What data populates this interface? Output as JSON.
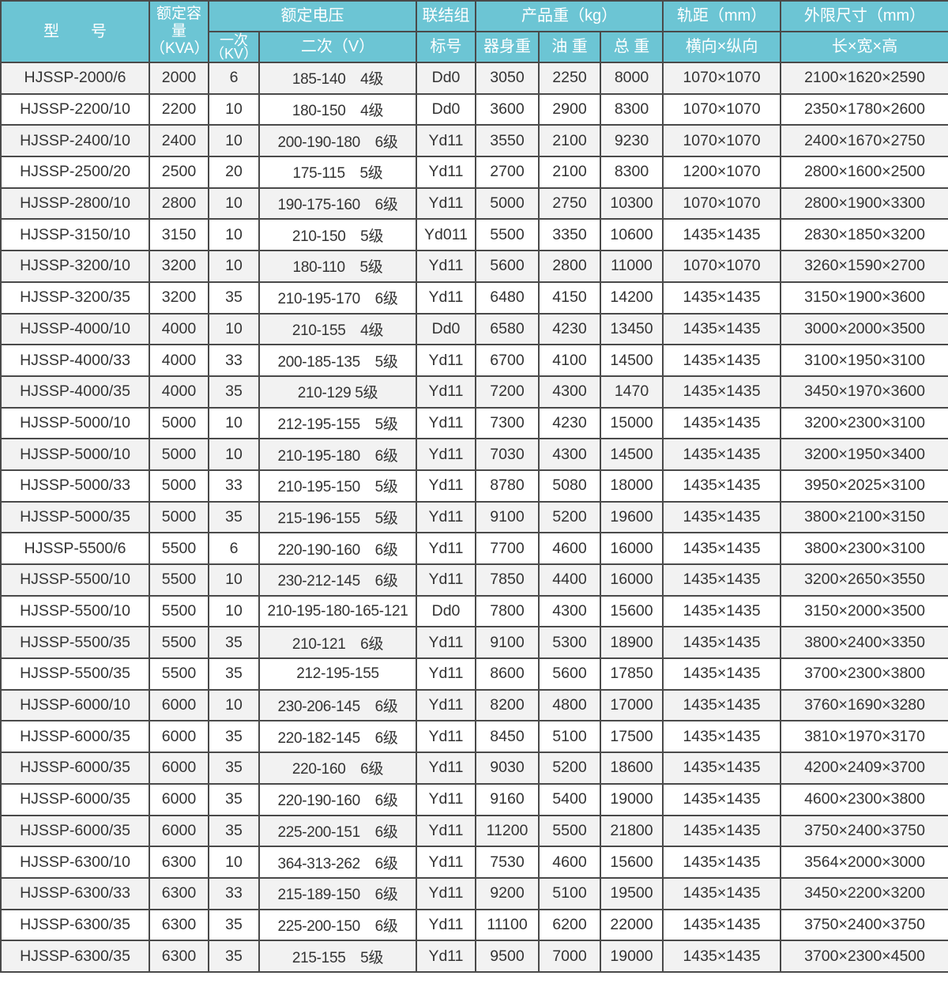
{
  "colors": {
    "header_bg": "#6cc5d4",
    "header_text": "#ffffff",
    "row_alt_bg": "#f2f2f2",
    "row_bg": "#ffffff",
    "border": "#4a4a4a"
  },
  "header": {
    "model": "型　　号",
    "capacity": "额定容量（KVA）",
    "rated_voltage": "额定电压",
    "primary": "一次（KV）",
    "secondary": "二次（V）",
    "connection_top": "联结组",
    "connection_bottom": "标号",
    "weight": "产品重（kg）",
    "body_weight": "器身重",
    "oil_weight": "油 重",
    "total_weight": "总 重",
    "gauge": "轨距（mm）",
    "gauge_sub": "横向×纵向",
    "dimensions": "外限尺寸（mm）",
    "dimensions_sub": "长×宽×高"
  },
  "rows": [
    [
      "HJSSP-2000/6",
      "2000",
      "6",
      "185-140　4级",
      "Dd0",
      "3050",
      "2250",
      "8000",
      "1070×1070",
      "2100×1620×2590"
    ],
    [
      "HJSSP-2200/10",
      "2200",
      "10",
      "180-150　4级",
      "Dd0",
      "3600",
      "2900",
      "8300",
      "1070×1070",
      "2350×1780×2600"
    ],
    [
      "HJSSP-2400/10",
      "2400",
      "10",
      "200-190-180　6级",
      "Yd11",
      "3550",
      "2100",
      "9230",
      "1070×1070",
      "2400×1670×2750"
    ],
    [
      "HJSSP-2500/20",
      "2500",
      "20",
      "175-115　5级",
      "Yd11",
      "2700",
      "2100",
      "8300",
      "1200×1070",
      "2800×1600×2500"
    ],
    [
      "HJSSP-2800/10",
      "2800",
      "10",
      "190-175-160　6级",
      "Yd11",
      "5000",
      "2750",
      "10300",
      "1070×1070",
      "2800×1900×3300"
    ],
    [
      "HJSSP-3150/10",
      "3150",
      "10",
      "210-150　5级",
      "Yd011",
      "5500",
      "3350",
      "10600",
      "1435×1435",
      "2830×1850×3200"
    ],
    [
      "HJSSP-3200/10",
      "3200",
      "10",
      "180-110　5级",
      "Yd11",
      "5600",
      "2800",
      "11000",
      "1070×1070",
      "3260×1590×2700"
    ],
    [
      "HJSSP-3200/35",
      "3200",
      "35",
      "210-195-170　6级",
      "Yd11",
      "6480",
      "4150",
      "14200",
      "1435×1435",
      "3150×1900×3600"
    ],
    [
      "HJSSP-4000/10",
      "4000",
      "10",
      "210-155　4级",
      "Dd0",
      "6580",
      "4230",
      "13450",
      "1435×1435",
      "3000×2000×3500"
    ],
    [
      "HJSSP-4000/33",
      "4000",
      "33",
      "200-185-135　5级",
      "Yd11",
      "6700",
      "4100",
      "14500",
      "1435×1435",
      "3100×1950×3100"
    ],
    [
      "HJSSP-4000/35",
      "4000",
      "35",
      "210-129 5级",
      "Yd11",
      "7200",
      "4300",
      "1470",
      "1435×1435",
      "3450×1970×3600"
    ],
    [
      "HJSSP-5000/10",
      "5000",
      "10",
      "212-195-155　5级",
      "Yd11",
      "7300",
      "4230",
      "15000",
      "1435×1435",
      "3200×2300×3100"
    ],
    [
      "HJSSP-5000/10",
      "5000",
      "10",
      "210-195-180　6级",
      "Yd11",
      "7030",
      "4300",
      "14500",
      "1435×1435",
      "3200×1950×3400"
    ],
    [
      "HJSSP-5000/33",
      "5000",
      "33",
      "210-195-150　5级",
      "Yd11",
      "8780",
      "5080",
      "18000",
      "1435×1435",
      "3950×2025×3100"
    ],
    [
      "HJSSP-5000/35",
      "5000",
      "35",
      "215-196-155　5级",
      "Yd11",
      "9100",
      "5200",
      "19600",
      "1435×1435",
      "3800×2100×3150"
    ],
    [
      "HJSSP-5500/6",
      "5500",
      "6",
      "220-190-160　6级",
      "Yd11",
      "7700",
      "4600",
      "16000",
      "1435×1435",
      "3800×2300×3100"
    ],
    [
      "HJSSP-5500/10",
      "5500",
      "10",
      "230-212-145　6级",
      "Yd11",
      "7850",
      "4400",
      "16000",
      "1435×1435",
      "3200×2650×3550"
    ],
    [
      "HJSSP-5500/10",
      "5500",
      "10",
      "210-195-180-165-121",
      "Dd0",
      "7800",
      "4300",
      "15600",
      "1435×1435",
      "3150×2000×3500"
    ],
    [
      "HJSSP-5500/35",
      "5500",
      "35",
      "210-121　6级",
      "Yd11",
      "9100",
      "5300",
      "18900",
      "1435×1435",
      "3800×2400×3350"
    ],
    [
      "HJSSP-5500/35",
      "5500",
      "35",
      "212-195-155",
      "Yd11",
      "8600",
      "5600",
      "17850",
      "1435×1435",
      "3700×2300×3800"
    ],
    [
      "HJSSP-6000/10",
      "6000",
      "10",
      "230-206-145　6级",
      "Yd11",
      "8200",
      "4800",
      "17000",
      "1435×1435",
      "3760×1690×3280"
    ],
    [
      "HJSSP-6000/35",
      "6000",
      "35",
      "220-182-145　6级",
      "Yd11",
      "8450",
      "5100",
      "17500",
      "1435×1435",
      "3810×1970×3170"
    ],
    [
      "HJSSP-6000/35",
      "6000",
      "35",
      "220-160　6级",
      "Yd11",
      "9030",
      "5200",
      "18600",
      "1435×1435",
      "4200×2409×3700"
    ],
    [
      "HJSSP-6000/35",
      "6000",
      "35",
      "220-190-160　6级",
      "Yd11",
      "9160",
      "5400",
      "19000",
      "1435×1435",
      "4600×2300×3800"
    ],
    [
      "HJSSP-6000/35",
      "6000",
      "35",
      "225-200-151　6级",
      "Yd11",
      "11200",
      "5500",
      "21800",
      "1435×1435",
      "3750×2400×3750"
    ],
    [
      "HJSSP-6300/10",
      "6300",
      "10",
      "364-313-262　6级",
      "Yd11",
      "7530",
      "4600",
      "15600",
      "1435×1435",
      "3564×2000×3000"
    ],
    [
      "HJSSP-6300/33",
      "6300",
      "33",
      "215-189-150　6级",
      "Yd11",
      "9200",
      "5100",
      "19500",
      "1435×1435",
      "3450×2200×3200"
    ],
    [
      "HJSSP-6300/35",
      "6300",
      "35",
      "225-200-150　6级",
      "Yd11",
      "11100",
      "6200",
      "22000",
      "1435×1435",
      "3750×2400×3750"
    ],
    [
      "HJSSP-6300/35",
      "6300",
      "35",
      "215-155　5级",
      "Yd11",
      "9500",
      "7000",
      "19000",
      "1435×1435",
      "3700×2300×4500"
    ]
  ]
}
